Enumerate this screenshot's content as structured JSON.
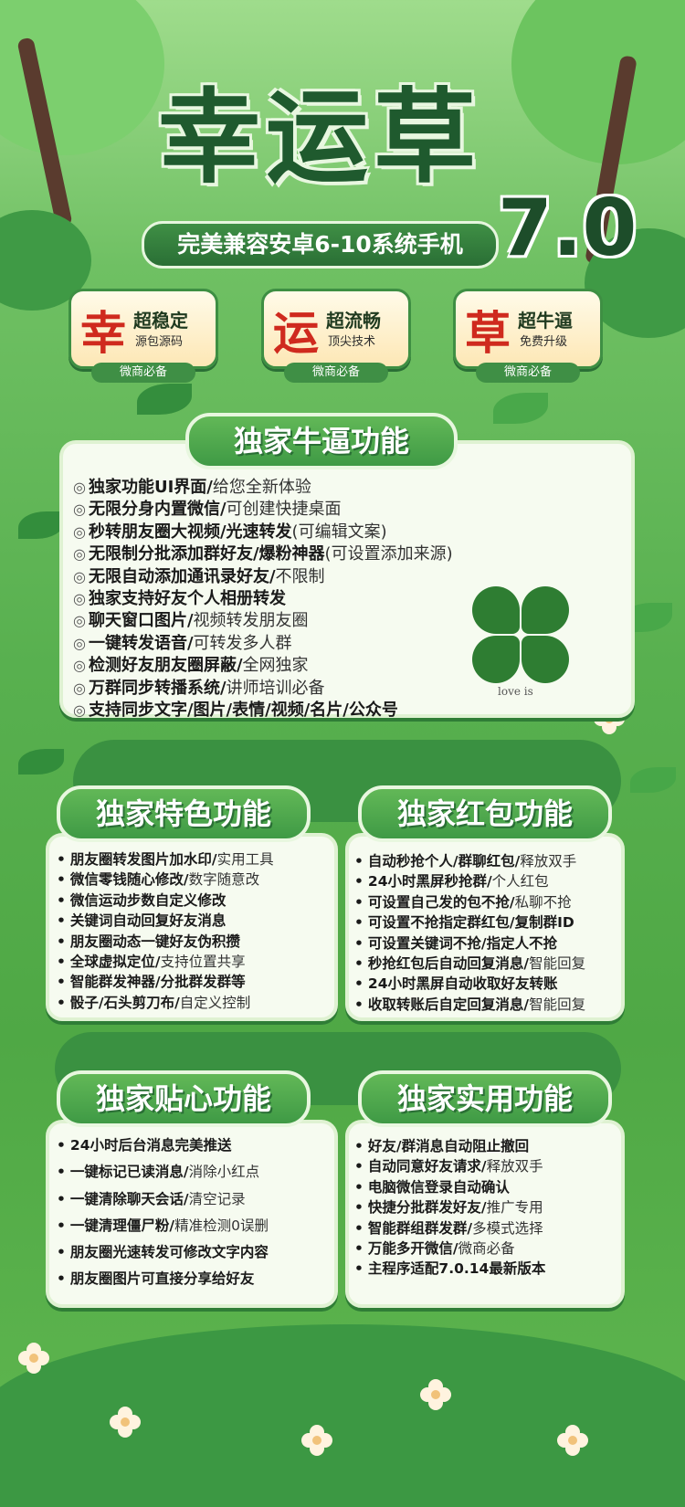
{
  "header": {
    "title": "幸运草",
    "version": "7.0",
    "subtitle": "完美兼容安卓6-10系统手机"
  },
  "badges": [
    {
      "char": "幸",
      "title": "超稳定",
      "sub": "源包源码",
      "foot": "微商必备"
    },
    {
      "char": "运",
      "title": "超流畅",
      "sub": "顶尖技术",
      "foot": "微商必备"
    },
    {
      "char": "草",
      "title": "超牛逼",
      "sub": "免费升级",
      "foot": "微商必备"
    }
  ],
  "sections": {
    "main": {
      "title": "独家牛逼功能",
      "items": [
        {
          "bold": "独家功能UI界面/",
          "normal": "给您全新体验"
        },
        {
          "bold": "无限分身内置微信/",
          "normal": "可创建快捷桌面"
        },
        {
          "bold": "秒转朋友圈大视频/光速转发",
          "normal": "(可编辑文案)"
        },
        {
          "bold": "无限制分批添加群好友/爆粉神器",
          "normal": "(可设置添加来源)"
        },
        {
          "bold": "无限自动添加通讯录好友/",
          "normal": "不限制"
        },
        {
          "bold": "独家支持好友个人相册转发",
          "normal": ""
        },
        {
          "bold": "聊天窗口图片/",
          "normal": "视频转发朋友圈"
        },
        {
          "bold": "一键转发语音/",
          "normal": "可转发多人群"
        },
        {
          "bold": "检测好友朋友圈屏蔽/",
          "normal": "全网独家"
        },
        {
          "bold": "万群同步转播系统/",
          "normal": "讲师培训必备"
        },
        {
          "bold": "支持同步文字/图片/表情/视频/名片/公众号",
          "normal": ""
        }
      ],
      "clover_caption": "love is"
    },
    "special": {
      "title": "独家特色功能",
      "items": [
        {
          "bold": "朋友圈转发图片加水印/",
          "normal": "实用工具"
        },
        {
          "bold": "微信零钱随心修改/",
          "normal": "数字随意改"
        },
        {
          "bold": "微信运动步数自定义修改",
          "normal": ""
        },
        {
          "bold": "关键词自动回复好友消息",
          "normal": ""
        },
        {
          "bold": "朋友圈动态一键好友伪积攒",
          "normal": ""
        },
        {
          "bold": "全球虚拟定位/",
          "normal": "支持位置共享"
        },
        {
          "bold": "智能群发神器/分批群发群等",
          "normal": ""
        },
        {
          "bold": "骰子/石头剪刀布/",
          "normal": "自定义控制"
        }
      ]
    },
    "redpacket": {
      "title": "独家红包功能",
      "items": [
        {
          "bold": "自动秒抢个人/群聊红包/",
          "normal": "释放双手"
        },
        {
          "bold": "24小时黑屏秒抢群/",
          "normal": "个人红包"
        },
        {
          "bold": "可设置自己发的包不抢/",
          "normal": "私聊不抢"
        },
        {
          "bold": "可设置不抢指定群红包/复制群ID",
          "normal": ""
        },
        {
          "bold": "可设置关键词不抢/指定人不抢",
          "normal": ""
        },
        {
          "bold": "秒抢红包后自动回复消息/",
          "normal": "智能回复"
        },
        {
          "bold": "24小时黑屏自动收取好友转账",
          "normal": ""
        },
        {
          "bold": "收取转账后自定回复消息/",
          "normal": "智能回复"
        }
      ]
    },
    "caring": {
      "title": "独家贴心功能",
      "items": [
        {
          "bold": "24小时后台消息完美推送",
          "normal": ""
        },
        {
          "bold": "一键标记已读消息/",
          "normal": "消除小红点"
        },
        {
          "bold": "一键清除聊天会话/",
          "normal": "清空记录"
        },
        {
          "bold": "一键清理僵尸粉/",
          "normal": "精准检测0误删"
        },
        {
          "bold": "朋友圈光速转发可修改文字内容",
          "normal": ""
        },
        {
          "bold": "朋友圈图片可直接分享给好友",
          "normal": ""
        }
      ]
    },
    "practical": {
      "title": "独家实用功能",
      "items": [
        {
          "bold": "好友/群消息自动阻止撤回",
          "normal": ""
        },
        {
          "bold": "自动同意好友请求/",
          "normal": "释放双手"
        },
        {
          "bold": "电脑微信登录自动确认",
          "normal": ""
        },
        {
          "bold": "快捷分批群发好友/",
          "normal": "推广专用"
        },
        {
          "bold": "智能群组群发群/",
          "normal": "多模式选择"
        },
        {
          "bold": "万能多开微信/",
          "normal": "微商必备"
        },
        {
          "bold": "主程序适配7.0.14最新版本",
          "normal": ""
        }
      ]
    }
  },
  "colors": {
    "brand_green": "#3f9a45",
    "dark_green": "#1f5a2e",
    "badge_red": "#cf2a1e",
    "panel_bg": "#f6fbf0"
  }
}
